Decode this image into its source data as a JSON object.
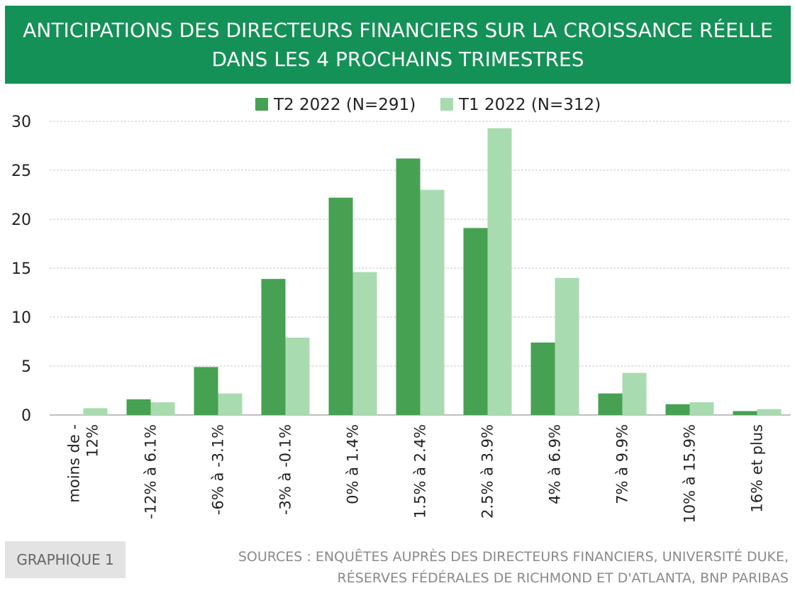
{
  "header": {
    "title_line1": "ANTICIPATIONS DES DIRECTEURS FINANCIERS SUR LA CROISSANCE RÉELLE",
    "title_line2": "DANS LES 4 PROCHAINS TRIMESTRES"
  },
  "footer": {
    "badge": "GRAPHIQUE 1",
    "sources_line1": "SOURCES : ENQUÊTES AUPRÈS DES DIRECTEURS FINANCIERS, UNIVERSITÉ DUKE,",
    "sources_line2": "RÉSERVES FÉDÉRALES DE RICHMOND ET D'ATLANTA, BNP PARIBAS"
  },
  "colors": {
    "banner": "#139157",
    "series_dark": "#46a152",
    "series_light": "#a9dbb0",
    "grid": "#c8c8c8",
    "axis": "#bfbfbf"
  },
  "chart_data": {
    "type": "bar",
    "categories": [
      [
        "moins de -",
        "12%"
      ],
      [
        "-12% à 6.1%"
      ],
      [
        "-6% à -3.1%"
      ],
      [
        "-3% à -0.1%"
      ],
      [
        "0% à 1.4%"
      ],
      [
        "1.5% à 2.4%"
      ],
      [
        "2.5% à 3.9%"
      ],
      [
        "4% à 6.9%"
      ],
      [
        "7% à 9.9%"
      ],
      [
        "10% à 15.9%"
      ],
      [
        "16% et plus"
      ]
    ],
    "series": [
      {
        "name": "T2 2022 (N=291)",
        "color": "#46a152",
        "values": [
          0,
          1.6,
          4.9,
          13.9,
          22.2,
          26.2,
          19.1,
          7.4,
          2.2,
          1.1,
          0.4
        ]
      },
      {
        "name": "T1 2022 (N=312)",
        "color": "#a9dbb0",
        "values": [
          0.7,
          1.3,
          2.2,
          7.9,
          14.6,
          23.0,
          29.3,
          14.0,
          4.3,
          1.3,
          0.6
        ]
      }
    ],
    "ylim": [
      0,
      30
    ],
    "yticks": [
      0,
      5,
      10,
      15,
      20,
      25,
      30
    ],
    "legend": "top-center",
    "grid": true
  }
}
